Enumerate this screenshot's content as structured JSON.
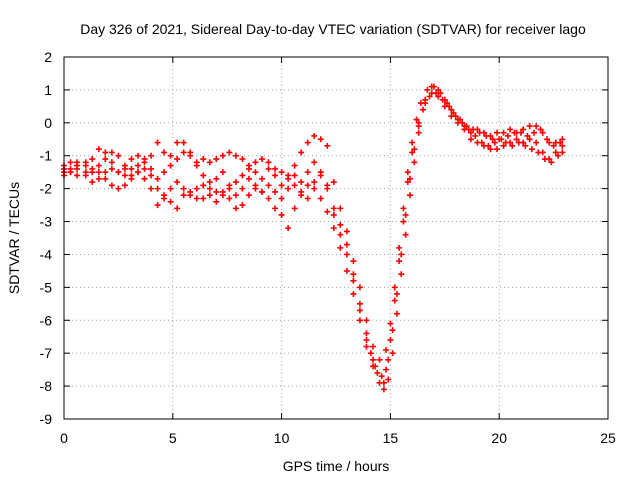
{
  "chart_data": {
    "type": "scatter",
    "title": "Day 326 of 2021, Sidereal Day-to-day VTEC variation (SDTVAR) for receiver lago",
    "xlabel": "GPS time / hours",
    "ylabel": "SDTVAR / TECUs",
    "xlim": [
      0,
      25
    ],
    "ylim": [
      -9,
      2
    ],
    "xticks": [
      "0",
      "5",
      "10",
      "15",
      "20",
      "25"
    ],
    "yticks": [
      "2",
      "1",
      "0",
      "-1",
      "-2",
      "-3",
      "-4",
      "-5",
      "-6",
      "-7",
      "-8",
      "-9"
    ],
    "grid": true,
    "marker": "+",
    "color": "#ff0000",
    "series": [
      {
        "points": [
          [
            0.0,
            -1.5
          ],
          [
            0.3,
            -1.4
          ],
          [
            0.6,
            -1.3
          ],
          [
            1.0,
            -1.2
          ],
          [
            1.3,
            -1.1
          ],
          [
            1.6,
            -0.8
          ],
          [
            1.9,
            -0.9
          ],
          [
            2.2,
            -1.2
          ],
          [
            2.5,
            -1.5
          ],
          [
            2.8,
            -1.3
          ],
          [
            3.1,
            -1.1
          ],
          [
            3.4,
            -1.0
          ],
          [
            3.7,
            -1.1
          ],
          [
            4.0,
            -1.0
          ],
          [
            4.3,
            -0.6
          ],
          [
            4.6,
            -0.9
          ],
          [
            4.9,
            -1.3
          ],
          [
            5.2,
            -1.1
          ],
          [
            5.5,
            -0.9
          ],
          [
            5.8,
            -1.0
          ],
          [
            6.1,
            -1.2
          ],
          [
            6.4,
            -1.1
          ],
          [
            6.7,
            -1.2
          ],
          [
            7.0,
            -1.1
          ],
          [
            7.3,
            -1.0
          ],
          [
            7.6,
            -0.9
          ],
          [
            7.9,
            -1.0
          ],
          [
            8.2,
            -1.1
          ],
          [
            8.5,
            -1.3
          ],
          [
            8.8,
            -1.5
          ],
          [
            9.1,
            -1.7
          ],
          [
            9.4,
            -1.4
          ],
          [
            9.7,
            -1.6
          ],
          [
            10.0,
            -1.9
          ],
          [
            10.3,
            -1.6
          ],
          [
            10.6,
            -1.3
          ],
          [
            10.9,
            -0.9
          ],
          [
            11.2,
            -0.6
          ],
          [
            11.5,
            -0.4
          ],
          [
            11.8,
            -0.5
          ],
          [
            12.1,
            -0.7
          ],
          [
            12.4,
            -1.8
          ],
          [
            12.7,
            -2.6
          ],
          [
            13.0,
            -3.3
          ],
          [
            13.3,
            -4.2
          ],
          [
            13.6,
            -5.0
          ],
          [
            13.9,
            -6.0
          ],
          [
            14.2,
            -6.8
          ],
          [
            14.5,
            -7.2
          ],
          [
            14.8,
            -6.9
          ],
          [
            15.0,
            -6.1
          ],
          [
            15.2,
            -5.0
          ],
          [
            15.4,
            -3.8
          ],
          [
            15.6,
            -2.6
          ],
          [
            15.8,
            -1.5
          ],
          [
            16.0,
            -0.6
          ],
          [
            16.2,
            0.1
          ],
          [
            16.4,
            0.6
          ],
          [
            16.7,
            1.0
          ],
          [
            17.0,
            1.1
          ],
          [
            17.3,
            0.9
          ],
          [
            17.6,
            0.6
          ],
          [
            17.9,
            0.3
          ],
          [
            18.2,
            0.1
          ],
          [
            18.5,
            -0.1
          ],
          [
            18.8,
            -0.2
          ],
          [
            19.1,
            -0.3
          ],
          [
            19.4,
            -0.4
          ],
          [
            19.7,
            -0.5
          ],
          [
            20.0,
            -0.5
          ],
          [
            20.3,
            -0.6
          ],
          [
            20.6,
            -0.7
          ],
          [
            20.9,
            -0.6
          ],
          [
            21.2,
            -0.7
          ],
          [
            21.5,
            -0.8
          ],
          [
            21.8,
            -0.9
          ],
          [
            22.1,
            -1.1
          ],
          [
            22.4,
            -1.2
          ],
          [
            22.7,
            -1.0
          ],
          [
            22.9,
            -0.9
          ]
        ]
      },
      {
        "points": [
          [
            0.0,
            -1.4
          ],
          [
            0.3,
            -1.5
          ],
          [
            0.6,
            -1.6
          ],
          [
            1.0,
            -1.5
          ],
          [
            1.3,
            -1.4
          ],
          [
            1.6,
            -1.5
          ],
          [
            1.9,
            -1.7
          ],
          [
            2.2,
            -1.9
          ],
          [
            2.5,
            -2.0
          ],
          [
            2.8,
            -1.9
          ],
          [
            3.1,
            -1.6
          ],
          [
            3.4,
            -1.5
          ],
          [
            3.7,
            -1.7
          ],
          [
            4.0,
            -2.0
          ],
          [
            4.3,
            -2.5
          ],
          [
            4.6,
            -2.2
          ],
          [
            4.9,
            -2.4
          ],
          [
            5.2,
            -2.6
          ],
          [
            5.5,
            -2.2
          ],
          [
            5.8,
            -2.1
          ],
          [
            6.1,
            -2.3
          ],
          [
            6.4,
            -2.3
          ],
          [
            6.7,
            -2.2
          ],
          [
            7.0,
            -2.4
          ],
          [
            7.3,
            -2.1
          ],
          [
            7.6,
            -2.3
          ],
          [
            7.9,
            -2.6
          ],
          [
            8.2,
            -2.5
          ],
          [
            8.5,
            -2.2
          ],
          [
            8.8,
            -2.0
          ],
          [
            9.1,
            -2.1
          ],
          [
            9.4,
            -2.3
          ],
          [
            9.7,
            -2.6
          ],
          [
            10.0,
            -2.8
          ],
          [
            10.3,
            -3.2
          ],
          [
            10.6,
            -2.6
          ],
          [
            10.9,
            -2.2
          ],
          [
            11.2,
            -1.9
          ],
          [
            11.5,
            -2.0
          ],
          [
            11.8,
            -2.3
          ],
          [
            12.1,
            -2.7
          ],
          [
            12.4,
            -3.2
          ],
          [
            12.7,
            -3.8
          ],
          [
            13.0,
            -4.5
          ],
          [
            13.3,
            -5.2
          ],
          [
            13.6,
            -6.0
          ],
          [
            13.9,
            -6.8
          ],
          [
            14.2,
            -7.4
          ],
          [
            14.5,
            -7.9
          ],
          [
            14.7,
            -8.1
          ],
          [
            14.9,
            -7.8
          ],
          [
            15.1,
            -7.0
          ],
          [
            15.3,
            -5.8
          ],
          [
            15.5,
            -4.6
          ],
          [
            15.7,
            -3.4
          ],
          [
            15.9,
            -2.2
          ],
          [
            16.1,
            -1.2
          ],
          [
            16.3,
            -0.3
          ],
          [
            16.5,
            0.4
          ],
          [
            16.8,
            0.8
          ],
          [
            17.1,
            0.9
          ],
          [
            17.4,
            0.7
          ],
          [
            17.7,
            0.5
          ],
          [
            18.0,
            0.2
          ],
          [
            18.3,
            0.0
          ],
          [
            18.6,
            -0.2
          ],
          [
            18.9,
            -0.4
          ],
          [
            19.2,
            -0.6
          ],
          [
            19.5,
            -0.7
          ],
          [
            19.8,
            -0.6
          ],
          [
            20.1,
            -0.5
          ],
          [
            20.4,
            -0.4
          ],
          [
            20.7,
            -0.3
          ],
          [
            21.0,
            -0.3
          ],
          [
            21.3,
            -0.4
          ],
          [
            21.6,
            -0.3
          ],
          [
            21.9,
            -0.2
          ],
          [
            22.2,
            -0.5
          ],
          [
            22.5,
            -0.7
          ],
          [
            22.8,
            -0.6
          ]
        ]
      },
      {
        "points": [
          [
            0.0,
            -1.3
          ],
          [
            0.3,
            -1.2
          ],
          [
            0.6,
            -1.2
          ],
          [
            1.0,
            -1.3
          ],
          [
            1.3,
            -1.5
          ],
          [
            1.6,
            -1.3
          ],
          [
            1.9,
            -1.1
          ],
          [
            2.2,
            -0.9
          ],
          [
            2.5,
            -1.0
          ],
          [
            2.8,
            -1.4
          ],
          [
            3.1,
            -1.7
          ],
          [
            3.4,
            -1.5
          ],
          [
            3.7,
            -1.2
          ],
          [
            4.0,
            -1.4
          ],
          [
            4.3,
            -1.7
          ],
          [
            4.6,
            -1.5
          ],
          [
            4.9,
            -1.0
          ],
          [
            5.2,
            -0.6
          ],
          [
            5.5,
            -0.6
          ],
          [
            5.8,
            -0.9
          ],
          [
            6.1,
            -1.3
          ],
          [
            6.4,
            -1.6
          ],
          [
            6.7,
            -1.8
          ],
          [
            7.0,
            -1.7
          ],
          [
            7.3,
            -1.5
          ],
          [
            7.6,
            -1.9
          ],
          [
            7.9,
            -2.2
          ],
          [
            8.2,
            -2.0
          ],
          [
            8.5,
            -1.7
          ],
          [
            8.8,
            -1.9
          ],
          [
            9.1,
            -2.1
          ],
          [
            9.4,
            -1.9
          ],
          [
            9.7,
            -2.1
          ],
          [
            10.0,
            -2.3
          ],
          [
            10.3,
            -2.0
          ],
          [
            10.6,
            -1.6
          ],
          [
            10.9,
            -1.8
          ],
          [
            11.2,
            -1.5
          ],
          [
            11.5,
            -1.2
          ],
          [
            11.8,
            -1.5
          ],
          [
            12.1,
            -2.0
          ],
          [
            12.4,
            -2.6
          ],
          [
            12.7,
            -3.1
          ],
          [
            13.0,
            -3.7
          ],
          [
            13.3,
            -4.6
          ],
          [
            13.6,
            -5.5
          ],
          [
            13.9,
            -6.4
          ],
          [
            14.1,
            -7.0
          ],
          [
            14.3,
            -7.4
          ],
          [
            14.6,
            -7.7
          ],
          [
            14.8,
            -7.5
          ],
          [
            15.0,
            -6.6
          ],
          [
            15.2,
            -5.4
          ],
          [
            15.4,
            -4.2
          ],
          [
            15.6,
            -3.0
          ],
          [
            15.8,
            -1.8
          ],
          [
            16.0,
            -0.9
          ],
          [
            16.3,
            -0.1
          ],
          [
            16.6,
            0.6
          ],
          [
            16.9,
            0.9
          ],
          [
            17.2,
            0.8
          ],
          [
            17.5,
            0.5
          ],
          [
            17.8,
            0.2
          ],
          [
            18.1,
            0.0
          ],
          [
            18.4,
            -0.2
          ],
          [
            18.7,
            -0.5
          ],
          [
            19.0,
            -0.6
          ],
          [
            19.3,
            -0.7
          ],
          [
            19.6,
            -0.8
          ],
          [
            19.9,
            -0.8
          ],
          [
            20.2,
            -0.7
          ],
          [
            20.5,
            -0.6
          ],
          [
            20.8,
            -0.5
          ],
          [
            21.1,
            -0.6
          ],
          [
            21.4,
            -0.5
          ],
          [
            21.7,
            -0.6
          ],
          [
            22.0,
            -0.9
          ],
          [
            22.3,
            -1.1
          ],
          [
            22.6,
            -0.9
          ],
          [
            22.9,
            -0.7
          ]
        ]
      },
      {
        "points": [
          [
            0.0,
            -1.6
          ],
          [
            0.3,
            -1.5
          ],
          [
            0.6,
            -1.4
          ],
          [
            1.0,
            -1.6
          ],
          [
            1.3,
            -1.8
          ],
          [
            1.6,
            -1.7
          ],
          [
            1.9,
            -1.5
          ],
          [
            2.2,
            -1.4
          ],
          [
            2.5,
            -1.5
          ],
          [
            2.8,
            -1.6
          ],
          [
            3.1,
            -1.4
          ],
          [
            3.4,
            -1.3
          ],
          [
            3.7,
            -1.4
          ],
          [
            4.0,
            -1.6
          ],
          [
            4.3,
            -2.0
          ],
          [
            4.6,
            -2.3
          ],
          [
            4.9,
            -2.0
          ],
          [
            5.2,
            -1.8
          ],
          [
            5.5,
            -2.0
          ],
          [
            5.8,
            -2.2
          ],
          [
            6.1,
            -2.0
          ],
          [
            6.4,
            -1.9
          ],
          [
            6.7,
            -2.0
          ],
          [
            7.0,
            -2.1
          ],
          [
            7.3,
            -2.2
          ],
          [
            7.6,
            -2.0
          ],
          [
            7.9,
            -1.8
          ],
          [
            8.2,
            -1.6
          ],
          [
            8.5,
            -1.4
          ],
          [
            8.8,
            -1.2
          ],
          [
            9.1,
            -1.1
          ],
          [
            9.4,
            -1.2
          ],
          [
            9.7,
            -1.4
          ],
          [
            10.0,
            -1.5
          ],
          [
            10.3,
            -1.7
          ],
          [
            10.6,
            -1.9
          ],
          [
            10.9,
            -2.1
          ],
          [
            11.2,
            -2.3
          ],
          [
            11.5,
            -1.8
          ],
          [
            11.8,
            -1.6
          ],
          [
            12.1,
            -1.9
          ],
          [
            12.4,
            -2.8
          ],
          [
            12.7,
            -3.4
          ],
          [
            13.0,
            -4.0
          ],
          [
            13.3,
            -4.8
          ],
          [
            13.6,
            -5.7
          ],
          [
            13.9,
            -6.6
          ],
          [
            14.2,
            -7.2
          ],
          [
            14.4,
            -7.6
          ],
          [
            14.7,
            -7.9
          ],
          [
            14.9,
            -7.2
          ],
          [
            15.1,
            -6.3
          ],
          [
            15.3,
            -5.2
          ],
          [
            15.5,
            -4.0
          ],
          [
            15.7,
            -2.8
          ],
          [
            15.9,
            -1.7
          ],
          [
            16.1,
            -0.8
          ],
          [
            16.3,
            0.0
          ],
          [
            16.6,
            0.7
          ],
          [
            16.9,
            1.1
          ],
          [
            17.2,
            1.0
          ],
          [
            17.5,
            0.7
          ],
          [
            17.8,
            0.4
          ],
          [
            18.1,
            0.1
          ],
          [
            18.4,
            -0.1
          ],
          [
            18.7,
            -0.3
          ],
          [
            19.0,
            -0.2
          ],
          [
            19.3,
            -0.3
          ],
          [
            19.6,
            -0.4
          ],
          [
            19.9,
            -0.3
          ],
          [
            20.2,
            -0.3
          ],
          [
            20.5,
            -0.2
          ],
          [
            20.8,
            -0.3
          ],
          [
            21.1,
            -0.2
          ],
          [
            21.4,
            -0.1
          ],
          [
            21.7,
            -0.1
          ],
          [
            22.0,
            -0.3
          ],
          [
            22.3,
            -0.6
          ],
          [
            22.6,
            -0.6
          ],
          [
            22.9,
            -0.5
          ]
        ]
      }
    ]
  }
}
